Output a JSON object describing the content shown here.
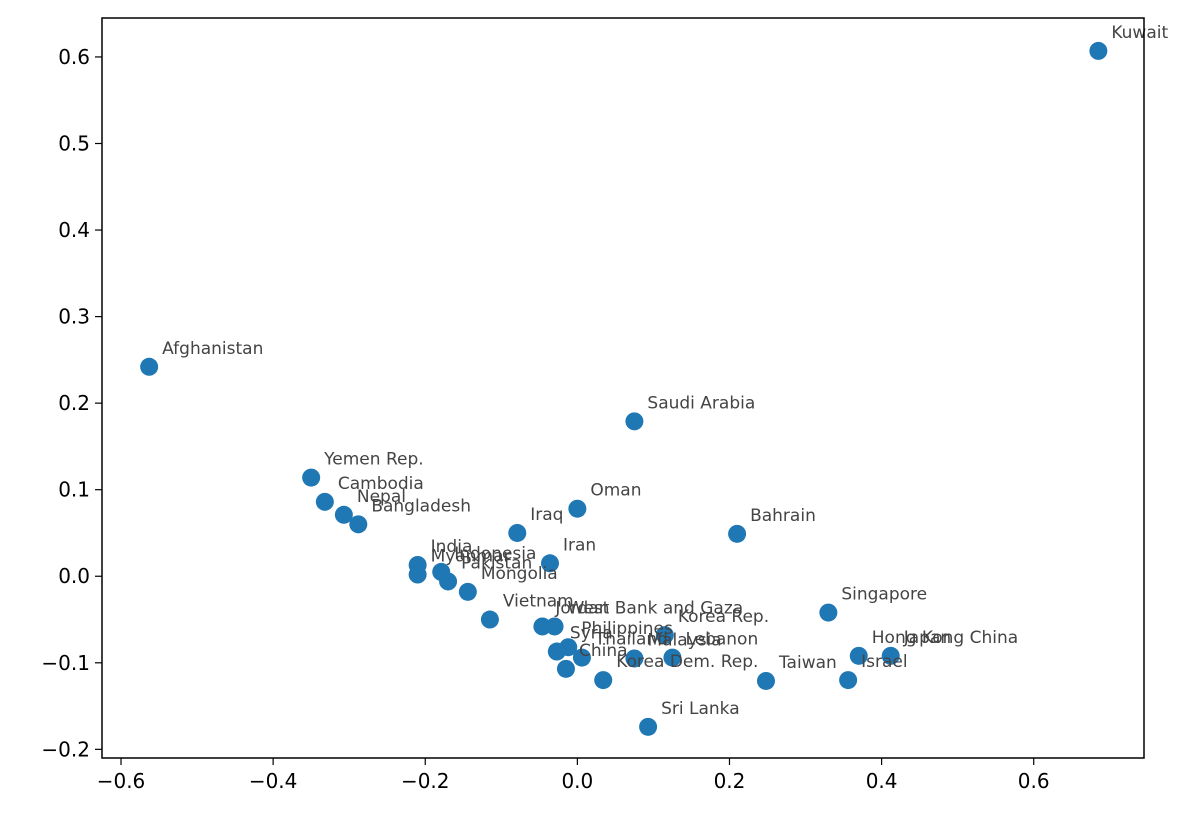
{
  "chart_data": {
    "type": "scatter",
    "title": "",
    "xlabel": "",
    "ylabel": "",
    "xlim": [
      -0.625,
      0.745
    ],
    "ylim": [
      -0.21,
      0.645
    ],
    "xticks": [
      -0.6,
      -0.4,
      -0.2,
      0.0,
      0.2,
      0.4,
      0.6
    ],
    "xtick_labels": [
      "−0.6",
      "−0.4",
      "−0.2",
      "0.0",
      "0.2",
      "0.4",
      "0.6"
    ],
    "yticks": [
      -0.2,
      -0.1,
      0.0,
      0.1,
      0.2,
      0.3,
      0.4,
      0.5,
      0.6
    ],
    "ytick_labels": [
      "−0.2",
      "−0.1",
      "0.0",
      "0.1",
      "0.2",
      "0.3",
      "0.4",
      "0.5",
      "0.6"
    ],
    "grid": false,
    "legend": "none",
    "marker_color": "#1f77b4",
    "label_color": "#444444",
    "points": [
      {
        "label": "Kuwait",
        "x": 0.685,
        "y": 0.607
      },
      {
        "label": "Afghanistan",
        "x": -0.563,
        "y": 0.242
      },
      {
        "label": "Saudi Arabia",
        "x": 0.075,
        "y": 0.179
      },
      {
        "label": "Yemen Rep.",
        "x": -0.35,
        "y": 0.114
      },
      {
        "label": "Cambodia",
        "x": -0.332,
        "y": 0.086
      },
      {
        "label": "Nepal",
        "x": -0.307,
        "y": 0.071
      },
      {
        "label": "Bangladesh",
        "x": -0.288,
        "y": 0.06
      },
      {
        "label": "Oman",
        "x": 0.0,
        "y": 0.078
      },
      {
        "label": "Iraq",
        "x": -0.079,
        "y": 0.05
      },
      {
        "label": "Bahrain",
        "x": 0.21,
        "y": 0.049
      },
      {
        "label": "Iran",
        "x": -0.036,
        "y": 0.015
      },
      {
        "label": "India",
        "x": -0.21,
        "y": 0.013
      },
      {
        "label": "Indonesia",
        "x": -0.179,
        "y": 0.005
      },
      {
        "label": "Myanmar",
        "x": -0.21,
        "y": 0.002
      },
      {
        "label": "Pakistan",
        "x": -0.17,
        "y": -0.006
      },
      {
        "label": "Mongolia",
        "x": -0.144,
        "y": -0.018
      },
      {
        "label": "Vietnam",
        "x": -0.115,
        "y": -0.05
      },
      {
        "label": "Jordan",
        "x": -0.046,
        "y": -0.058
      },
      {
        "label": "West Bank and Gaza",
        "x": -0.03,
        "y": -0.058
      },
      {
        "label": "Singapore",
        "x": 0.33,
        "y": -0.042
      },
      {
        "label": "Korea Rep.",
        "x": 0.115,
        "y": -0.068
      },
      {
        "label": "Philippines",
        "x": -0.012,
        "y": -0.082
      },
      {
        "label": "Syria",
        "x": -0.027,
        "y": -0.087
      },
      {
        "label": "Thailand",
        "x": 0.006,
        "y": -0.094
      },
      {
        "label": "Malaysia",
        "x": 0.075,
        "y": -0.095
      },
      {
        "label": "Lebanon",
        "x": 0.125,
        "y": -0.094
      },
      {
        "label": "China",
        "x": -0.015,
        "y": -0.107
      },
      {
        "label": "Korea Dem. Rep.",
        "x": 0.034,
        "y": -0.12
      },
      {
        "label": "Hong Kong China",
        "x": 0.37,
        "y": -0.092
      },
      {
        "label": "Japan",
        "x": 0.412,
        "y": -0.092
      },
      {
        "label": "Taiwan",
        "x": 0.248,
        "y": -0.121
      },
      {
        "label": "Israel",
        "x": 0.356,
        "y": -0.12
      },
      {
        "label": "Sri Lanka",
        "x": 0.093,
        "y": -0.174
      }
    ]
  }
}
